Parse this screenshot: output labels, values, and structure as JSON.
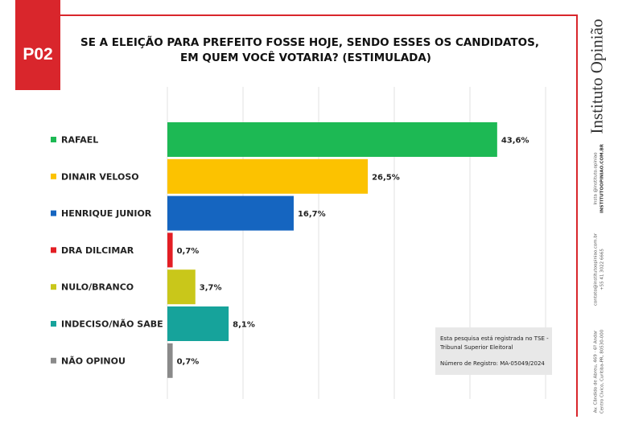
{
  "tag": "P02",
  "title_line1": "SE A ELEIÇÃO PARA PREFEITO FOSSE HOJE, SENDO ESSES OS CANDIDATOS,",
  "title_line2": "EM QUEM VOCÊ VOTARIA? (ESTIMULADA)",
  "brand": {
    "name": "Instituto Opinião",
    "handle_label": "Insta @instituto.opiniao",
    "site": "INSTITUTOOPINIAO.COM.BR",
    "email": "contato@institutoopiniao.com.br",
    "phone": "+55 41 3022 6665",
    "address_line1": "Av. Cândido de Abreu, 469 · 6º Andar",
    "address_line2": "Centro Cívico, Curitiba-PR, 80530-000"
  },
  "note": {
    "line1": "Esta pesquisa está registrada no TSE -",
    "line2": "Tribunal Superior Eleitoral",
    "line3": "Número de Registro: MA-05049/2024"
  },
  "colors": {
    "accent": "#d9262c"
  },
  "chart_data": {
    "type": "bar",
    "orientation": "horizontal",
    "title": "SE A ELEIÇÃO PARA PREFEITO FOSSE HOJE, SENDO ESSES OS CANDIDATOS, EM QUEM VOCÊ VOTARIA? (ESTIMULADA)",
    "categories": [
      "RAFAEL",
      "DINAIR VELOSO",
      "HENRIQUE JUNIOR",
      "DRA DILCIMAR",
      "NULO/BRANCO",
      "INDECISO/NÃO SABE",
      "NÃO OPINOU"
    ],
    "values": [
      43.6,
      26.5,
      16.7,
      0.7,
      3.7,
      8.1,
      0.7
    ],
    "value_labels": [
      "43,6%",
      "26,5%",
      "16,7%",
      "0,7%",
      "3,7%",
      "8,1%",
      "0,7%"
    ],
    "colors": [
      "#1db954",
      "#fcc200",
      "#1565c0",
      "#e31e24",
      "#c9c71a",
      "#16a39b",
      "#8a8a8a"
    ],
    "xlim": [
      0,
      50
    ],
    "grid": true,
    "legend": "left"
  }
}
